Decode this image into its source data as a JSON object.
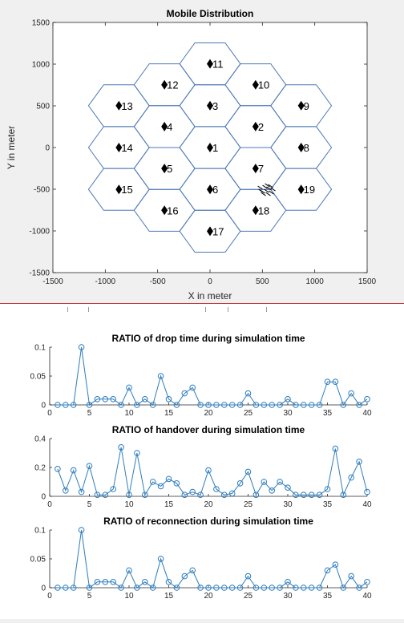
{
  "chart_data": [
    {
      "type": "scatter",
      "title": "Mobile Distribution",
      "xlabel": "X in meter",
      "ylabel": "Y in meter",
      "xlim": [
        -1500,
        1500
      ],
      "ylim": [
        -1500,
        1500
      ],
      "xticks": [
        "-1500",
        "-1000",
        "-500",
        "0",
        "500",
        "1000",
        "1500"
      ],
      "yticks": [
        "-1500",
        "-1000",
        "-500",
        "0",
        "500",
        "1000",
        "1500"
      ],
      "cell_radius": 290,
      "cells": [
        {
          "id": "1",
          "x": 0,
          "y": 0
        },
        {
          "id": "2",
          "x": 435,
          "y": 251
        },
        {
          "id": "3",
          "x": 0,
          "y": 502
        },
        {
          "id": "4",
          "x": -435,
          "y": 251
        },
        {
          "id": "5",
          "x": -435,
          "y": -251
        },
        {
          "id": "6",
          "x": 0,
          "y": -502
        },
        {
          "id": "7",
          "x": 435,
          "y": -251
        },
        {
          "id": "8",
          "x": 870,
          "y": 0
        },
        {
          "id": "9",
          "x": 870,
          "y": 502
        },
        {
          "id": "10",
          "x": 435,
          "y": 753
        },
        {
          "id": "11",
          "x": 0,
          "y": 1004
        },
        {
          "id": "12",
          "x": -435,
          "y": 753
        },
        {
          "id": "13",
          "x": -870,
          "y": 502
        },
        {
          "id": "14",
          "x": -870,
          "y": 0
        },
        {
          "id": "15",
          "x": -870,
          "y": -502
        },
        {
          "id": "16",
          "x": -435,
          "y": -753
        },
        {
          "id": "17",
          "x": 0,
          "y": -1004
        },
        {
          "id": "18",
          "x": 435,
          "y": -753
        },
        {
          "id": "19",
          "x": 870,
          "y": -502
        }
      ],
      "mobile_cluster": {
        "x": 540,
        "y": -510
      },
      "grid": false,
      "colors": {
        "hexagon": "#4c78b5",
        "marker": "#000000"
      }
    },
    {
      "type": "line",
      "title": "RATIO of drop time during simulation time",
      "xlim": [
        0,
        40
      ],
      "ylim": [
        0,
        0.1
      ],
      "xticks": [
        "0",
        "5",
        "10",
        "15",
        "20",
        "25",
        "30",
        "35",
        "40"
      ],
      "yticks": [
        "0",
        "0.05",
        "0.1"
      ],
      "x": [
        1,
        2,
        3,
        4,
        5,
        6,
        7,
        8,
        9,
        10,
        11,
        12,
        13,
        14,
        15,
        16,
        17,
        18,
        19,
        20,
        21,
        22,
        23,
        24,
        25,
        26,
        27,
        28,
        29,
        30,
        31,
        32,
        33,
        34,
        35,
        36,
        37,
        38,
        39,
        40
      ],
      "values": [
        0,
        0,
        0,
        0.1,
        0,
        0.01,
        0.01,
        0.01,
        0,
        0.03,
        0,
        0.01,
        0,
        0.05,
        0.01,
        0,
        0.02,
        0.03,
        0,
        0,
        0,
        0,
        0,
        0,
        0.02,
        0,
        0,
        0,
        0,
        0.01,
        0,
        0,
        0,
        0,
        0.04,
        0.04,
        0,
        0.02,
        0,
        0.01
      ],
      "color": "#2e7dbd"
    },
    {
      "type": "line",
      "title": "RATIO of handover during simulation time",
      "xlim": [
        0,
        40
      ],
      "ylim": [
        0,
        0.4
      ],
      "xticks": [
        "0",
        "5",
        "10",
        "15",
        "20",
        "25",
        "30",
        "35",
        "40"
      ],
      "yticks": [
        "0",
        "0.2",
        "0.4"
      ],
      "x": [
        1,
        2,
        3,
        4,
        5,
        6,
        7,
        8,
        9,
        10,
        11,
        12,
        13,
        14,
        15,
        16,
        17,
        18,
        19,
        20,
        21,
        22,
        23,
        24,
        25,
        26,
        27,
        28,
        29,
        30,
        31,
        32,
        33,
        34,
        35,
        36,
        37,
        38,
        39,
        40
      ],
      "values": [
        0.19,
        0.04,
        0.18,
        0.03,
        0.21,
        0.01,
        0.01,
        0.05,
        0.34,
        0.01,
        0.3,
        0.01,
        0.1,
        0.07,
        0.12,
        0.09,
        0.01,
        0.03,
        0.01,
        0.18,
        0.05,
        0.01,
        0.02,
        0.09,
        0.17,
        0.01,
        0.1,
        0.04,
        0.1,
        0.06,
        0.01,
        0.01,
        0.01,
        0.01,
        0.05,
        0.33,
        0.01,
        0.13,
        0.24,
        0.03
      ],
      "color": "#2e7dbd"
    },
    {
      "type": "line",
      "title": "RATIO of reconnection during simulation time",
      "xlim": [
        0,
        40
      ],
      "ylim": [
        0,
        0.1
      ],
      "xticks": [
        "0",
        "5",
        "10",
        "15",
        "20",
        "25",
        "30",
        "35",
        "40"
      ],
      "yticks": [
        "0",
        "0.05",
        "0.1"
      ],
      "x": [
        1,
        2,
        3,
        4,
        5,
        6,
        7,
        8,
        9,
        10,
        11,
        12,
        13,
        14,
        15,
        16,
        17,
        18,
        19,
        20,
        21,
        22,
        23,
        24,
        25,
        26,
        27,
        28,
        29,
        30,
        31,
        32,
        33,
        34,
        35,
        36,
        37,
        38,
        39,
        40
      ],
      "values": [
        0,
        0,
        0,
        0.1,
        0,
        0.01,
        0.01,
        0.01,
        0,
        0.03,
        0,
        0.01,
        0,
        0.05,
        0.01,
        0,
        0.02,
        0.03,
        0,
        0,
        0,
        0,
        0,
        0,
        0.02,
        0,
        0,
        0,
        0,
        0.01,
        0,
        0,
        0,
        0,
        0.03,
        0.04,
        0,
        0.02,
        0,
        0.01
      ],
      "color": "#2e7dbd"
    }
  ]
}
